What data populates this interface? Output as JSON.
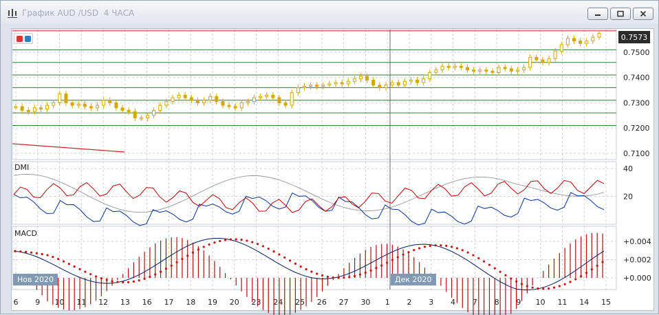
{
  "window": {
    "title": "График AUD /USD  4 ЧАСА",
    "buttons": [
      "minimize-icon",
      "restore-icon",
      "close-icon"
    ]
  },
  "colors": {
    "candle": "#d4a800",
    "hline": "#2e7d32",
    "resistance": "#c62828",
    "dmi_plus": "#003399",
    "dmi_minus": "#c00000",
    "adx": "#888888",
    "macd": "#001a66",
    "signal": "#cc1111",
    "hist": "#b01010",
    "tag_bg": "#7f9ab2"
  },
  "price_panel": {
    "last_price": "0.7573",
    "y_ticks": [
      "0.7500",
      "0.7400",
      "0.7300",
      "0.7200",
      "0.7100"
    ]
  },
  "dmi_panel": {
    "label": "DMI",
    "y_ticks": [
      "40",
      "20"
    ]
  },
  "macd_panel": {
    "label": "MACD",
    "y_ticks": [
      "+0.004",
      "+0.002",
      "+0.000"
    ]
  },
  "x_axis": {
    "ticks": [
      "6",
      "9",
      "10",
      "11",
      "12",
      "13",
      "16",
      "17",
      "18",
      "19",
      "20",
      "23",
      "24",
      "25",
      "26",
      "27",
      "30",
      "1",
      "2",
      "3",
      "4",
      "7",
      "8",
      "9",
      "10",
      "11",
      "14",
      "15"
    ],
    "month_tags": [
      "Нов 2020",
      "Дек 2020"
    ]
  },
  "chart_data": {
    "type": "candlestick",
    "instrument": "AUD/USD",
    "timeframe": "4H",
    "price_levels": [
      0.751,
      0.746,
      0.741,
      0.736,
      0.731,
      0.726,
      0.721
    ],
    "resistance_level": 0.7585,
    "close_series": [
      0.7285,
      0.727,
      0.7265,
      0.728,
      0.7275,
      0.729,
      0.73,
      0.7335,
      0.73,
      0.729,
      0.7295,
      0.7285,
      0.728,
      0.729,
      0.731,
      0.73,
      0.728,
      0.727,
      0.7265,
      0.724,
      0.724,
      0.725,
      0.727,
      0.729,
      0.7305,
      0.732,
      0.733,
      0.732,
      0.731,
      0.73,
      0.731,
      0.7325,
      0.7305,
      0.729,
      0.7285,
      0.728,
      0.73,
      0.7305,
      0.732,
      0.7325,
      0.733,
      0.732,
      0.73,
      0.729,
      0.734,
      0.736,
      0.7365,
      0.737,
      0.7365,
      0.737,
      0.7375,
      0.738,
      0.7375,
      0.7385,
      0.7395,
      0.7405,
      0.739,
      0.737,
      0.736,
      0.737,
      0.738,
      0.737,
      0.7385,
      0.739,
      0.738,
      0.7395,
      0.742,
      0.743,
      0.7445,
      0.744,
      0.7445,
      0.744,
      0.743,
      0.7425,
      0.743,
      0.7425,
      0.742,
      0.744,
      0.7435,
      0.7425,
      0.743,
      0.744,
      0.748,
      0.747,
      0.746,
      0.7475,
      0.7505,
      0.753,
      0.7555,
      0.7545,
      0.7535,
      0.7545,
      0.756,
      0.7575
    ]
  }
}
